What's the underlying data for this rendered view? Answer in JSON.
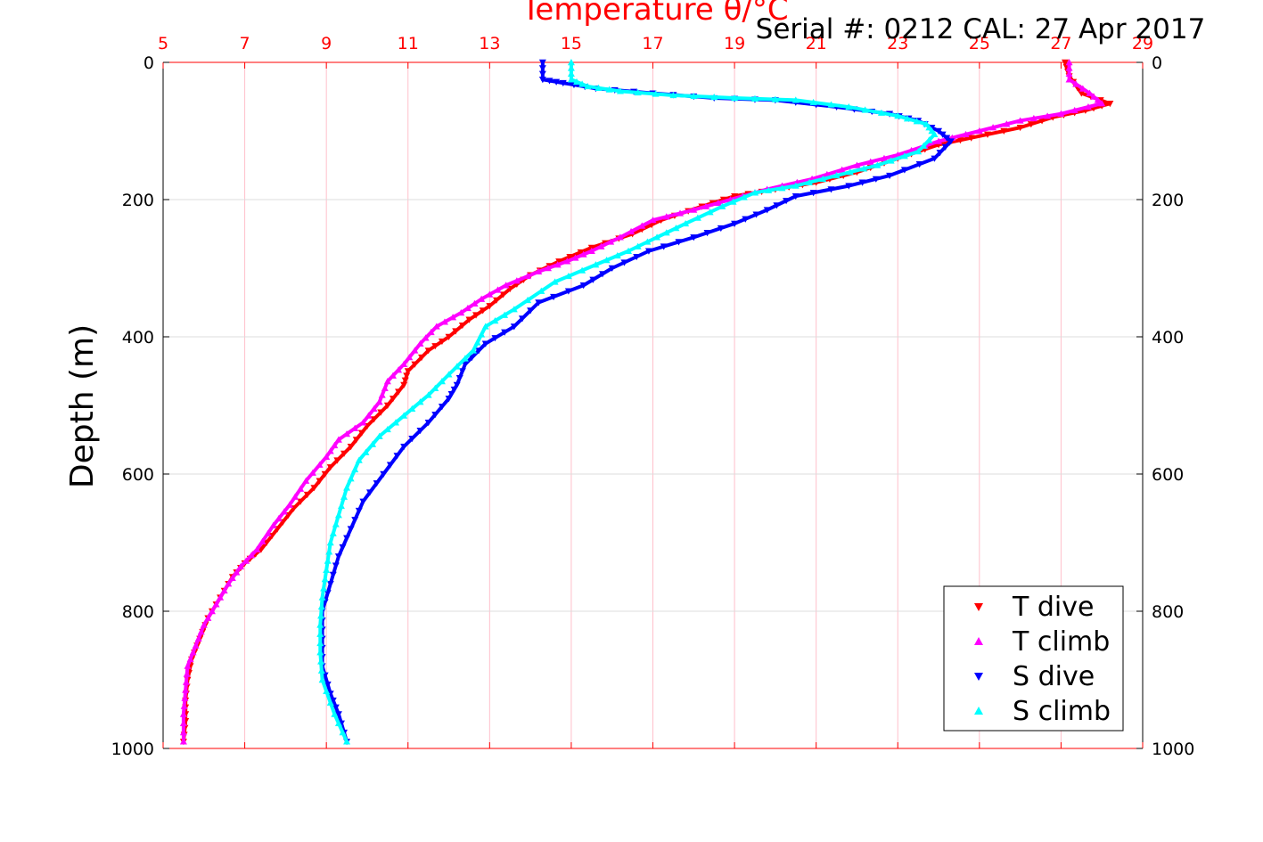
{
  "chart_data": {
    "type": "scatter",
    "title": "Temperature θ/°C",
    "subtitle": "Serial #: 0212  CAL: 27 Apr 2017",
    "xlabel": "Temperature θ/°C",
    "ylabel": "Depth (m)",
    "xlim": [
      5,
      29
    ],
    "ylim": [
      0,
      1000
    ],
    "y_inverted": true,
    "x_axis_position": "top",
    "x_ticks": [
      "5",
      "7",
      "9",
      "11",
      "13",
      "15",
      "17",
      "19",
      "21",
      "23",
      "25",
      "27",
      "29"
    ],
    "y_ticks": [
      "0",
      "200",
      "400",
      "600",
      "800",
      "1000"
    ],
    "grid": true,
    "grid_color": "#ffc0cb",
    "axis_color": "#ff0000",
    "legend_position": "bottom-right",
    "series": [
      {
        "name": "T dive",
        "color": "#ff0000",
        "marker": "triangle-down",
        "points": [
          [
            27.1,
            0
          ],
          [
            27.2,
            20
          ],
          [
            27.5,
            45
          ],
          [
            28.2,
            60
          ],
          [
            27.6,
            70
          ],
          [
            26.8,
            80
          ],
          [
            26.0,
            95
          ],
          [
            24.8,
            110
          ],
          [
            24.0,
            120
          ],
          [
            23.0,
            140
          ],
          [
            22.0,
            160
          ],
          [
            21.0,
            175
          ],
          [
            20.0,
            185
          ],
          [
            19.0,
            195
          ],
          [
            18.2,
            210
          ],
          [
            17.2,
            230
          ],
          [
            16.5,
            250
          ],
          [
            15.5,
            270
          ],
          [
            14.7,
            290
          ],
          [
            14.0,
            310
          ],
          [
            13.5,
            330
          ],
          [
            13.0,
            355
          ],
          [
            12.5,
            375
          ],
          [
            12.0,
            400
          ],
          [
            11.5,
            420
          ],
          [
            11.0,
            450
          ],
          [
            10.9,
            470
          ],
          [
            10.5,
            500
          ],
          [
            10.0,
            530
          ],
          [
            9.6,
            560
          ],
          [
            9.1,
            590
          ],
          [
            8.7,
            620
          ],
          [
            8.2,
            650
          ],
          [
            7.8,
            680
          ],
          [
            7.4,
            710
          ],
          [
            7.0,
            730
          ],
          [
            6.7,
            750
          ],
          [
            6.4,
            780
          ],
          [
            6.1,
            810
          ],
          [
            5.9,
            840
          ],
          [
            5.7,
            870
          ],
          [
            5.6,
            900
          ],
          [
            5.55,
            930
          ],
          [
            5.55,
            960
          ],
          [
            5.5,
            990
          ]
        ]
      },
      {
        "name": "T climb",
        "color": "#ff00ff",
        "marker": "triangle-up",
        "points": [
          [
            27.2,
            0
          ],
          [
            27.2,
            25
          ],
          [
            27.7,
            45
          ],
          [
            28.0,
            60
          ],
          [
            27.0,
            75
          ],
          [
            26.0,
            85
          ],
          [
            25.0,
            100
          ],
          [
            24.0,
            115
          ],
          [
            23.0,
            135
          ],
          [
            22.0,
            150
          ],
          [
            20.9,
            170
          ],
          [
            19.8,
            185
          ],
          [
            18.9,
            200
          ],
          [
            18.0,
            215
          ],
          [
            17.0,
            230
          ],
          [
            16.2,
            255
          ],
          [
            15.5,
            275
          ],
          [
            14.9,
            290
          ],
          [
            14.2,
            305
          ],
          [
            13.4,
            325
          ],
          [
            12.8,
            345
          ],
          [
            12.3,
            365
          ],
          [
            11.7,
            385
          ],
          [
            11.3,
            410
          ],
          [
            10.9,
            440
          ],
          [
            10.5,
            465
          ],
          [
            10.3,
            495
          ],
          [
            9.9,
            525
          ],
          [
            9.3,
            550
          ],
          [
            9.0,
            575
          ],
          [
            8.5,
            610
          ],
          [
            8.1,
            645
          ],
          [
            7.7,
            675
          ],
          [
            7.3,
            710
          ],
          [
            6.9,
            735
          ],
          [
            6.6,
            760
          ],
          [
            6.3,
            790
          ],
          [
            6.0,
            820
          ],
          [
            5.8,
            850
          ],
          [
            5.6,
            880
          ],
          [
            5.55,
            915
          ],
          [
            5.5,
            950
          ],
          [
            5.5,
            990
          ]
        ]
      },
      {
        "name": "S dive",
        "color": "#0000ff",
        "marker": "triangle-down",
        "points": [
          [
            14.3,
            0
          ],
          [
            14.3,
            25
          ],
          [
            14.8,
            30
          ],
          [
            15.6,
            38
          ],
          [
            17.0,
            45
          ],
          [
            18.5,
            52
          ],
          [
            20.0,
            55
          ],
          [
            21.5,
            65
          ],
          [
            22.8,
            75
          ],
          [
            23.5,
            85
          ],
          [
            24.0,
            100
          ],
          [
            24.3,
            115
          ],
          [
            23.9,
            140
          ],
          [
            22.8,
            165
          ],
          [
            21.8,
            180
          ],
          [
            20.5,
            195
          ],
          [
            19.8,
            215
          ],
          [
            19.0,
            235
          ],
          [
            18.0,
            255
          ],
          [
            16.9,
            275
          ],
          [
            16.0,
            300
          ],
          [
            15.3,
            325
          ],
          [
            14.2,
            350
          ],
          [
            13.6,
            385
          ],
          [
            12.9,
            410
          ],
          [
            12.4,
            440
          ],
          [
            12.2,
            470
          ],
          [
            12.0,
            490
          ],
          [
            11.5,
            525
          ],
          [
            10.9,
            560
          ],
          [
            10.4,
            600
          ],
          [
            9.9,
            640
          ],
          [
            9.6,
            680
          ],
          [
            9.3,
            720
          ],
          [
            9.1,
            760
          ],
          [
            8.9,
            800
          ],
          [
            8.9,
            840
          ],
          [
            8.9,
            880
          ],
          [
            9.1,
            920
          ],
          [
            9.3,
            950
          ],
          [
            9.5,
            990
          ]
        ]
      },
      {
        "name": "S climb",
        "color": "#00ffff",
        "marker": "triangle-up",
        "points": [
          [
            15.0,
            0
          ],
          [
            15.0,
            25
          ],
          [
            15.4,
            35
          ],
          [
            16.2,
            42
          ],
          [
            17.5,
            48
          ],
          [
            19.0,
            52
          ],
          [
            20.5,
            55
          ],
          [
            21.8,
            65
          ],
          [
            23.0,
            78
          ],
          [
            23.7,
            90
          ],
          [
            23.9,
            105
          ],
          [
            23.5,
            130
          ],
          [
            22.5,
            150
          ],
          [
            21.5,
            165
          ],
          [
            20.5,
            180
          ],
          [
            19.5,
            190
          ],
          [
            18.7,
            210
          ],
          [
            17.8,
            235
          ],
          [
            17.1,
            255
          ],
          [
            16.4,
            275
          ],
          [
            15.6,
            295
          ],
          [
            14.6,
            320
          ],
          [
            13.6,
            360
          ],
          [
            12.9,
            385
          ],
          [
            12.6,
            420
          ],
          [
            12.0,
            455
          ],
          [
            11.5,
            485
          ],
          [
            10.9,
            515
          ],
          [
            10.3,
            545
          ],
          [
            9.8,
            580
          ],
          [
            9.5,
            620
          ],
          [
            9.3,
            660
          ],
          [
            9.1,
            700
          ],
          [
            9.0,
            740
          ],
          [
            8.9,
            780
          ],
          [
            8.85,
            820
          ],
          [
            8.85,
            860
          ],
          [
            8.9,
            900
          ],
          [
            9.2,
            950
          ],
          [
            9.5,
            990
          ]
        ]
      }
    ]
  }
}
